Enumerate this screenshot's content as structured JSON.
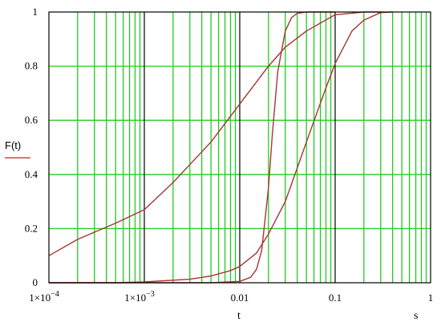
{
  "chart_data": {
    "type": "line",
    "xscale": "log",
    "xlim": [
      0.0001,
      1
    ],
    "ylim": [
      0,
      1
    ],
    "grid": true,
    "ylabel": "F(t)",
    "xlabel": "t",
    "x_unit": "s",
    "x_ticks": [
      "1×10",
      "1×10",
      "0.01",
      "0.1",
      "1"
    ],
    "x_tick_exponents": [
      "−4",
      "−3",
      "",
      "",
      ""
    ],
    "y_ticks": [
      "0",
      "0.2",
      "0.4",
      "0.6",
      "0.8",
      "1"
    ],
    "colors": {
      "curve": "#aa3333",
      "grid_minor": "#22cc22",
      "grid_decade": "#000000",
      "ylabel_underline": "#cc2222"
    },
    "series": [
      {
        "x": [
          0.0001,
          0.0002,
          0.0005,
          0.001,
          0.002,
          0.005,
          0.01,
          0.02,
          0.03,
          0.05,
          0.1,
          0.2,
          0.3
        ],
        "y": [
          0.1,
          0.16,
          0.22,
          0.27,
          0.37,
          0.52,
          0.66,
          0.8,
          0.87,
          0.93,
          0.99,
          1.0,
          1.0
        ]
      },
      {
        "x": [
          0.0001,
          0.0005,
          0.001,
          0.003,
          0.005,
          0.008,
          0.01,
          0.015,
          0.02,
          0.03,
          0.05,
          0.08,
          0.1,
          0.15,
          0.2,
          0.3,
          0.4
        ],
        "y": [
          0,
          0,
          0.003,
          0.013,
          0.025,
          0.045,
          0.06,
          0.11,
          0.18,
          0.3,
          0.52,
          0.72,
          0.81,
          0.93,
          0.97,
          0.998,
          1.0
        ]
      },
      {
        "x": [
          0.0001,
          0.005,
          0.01,
          0.013,
          0.015,
          0.017,
          0.02,
          0.022,
          0.025,
          0.03,
          0.035,
          0.04,
          0.05,
          0.06,
          0.1
        ],
        "y": [
          0,
          0,
          0.005,
          0.02,
          0.05,
          0.12,
          0.35,
          0.55,
          0.78,
          0.93,
          0.98,
          0.995,
          1.0,
          1.0,
          1.0
        ]
      }
    ]
  }
}
